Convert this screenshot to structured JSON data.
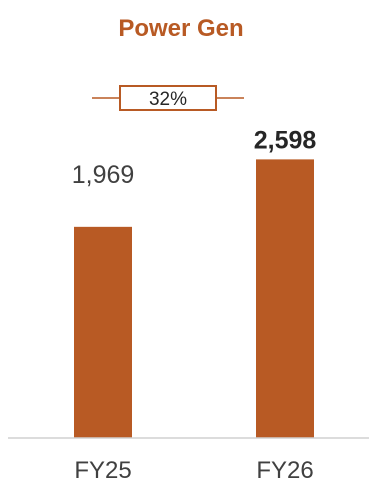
{
  "chart_data": {
    "type": "bar",
    "title": "Power Gen",
    "categories": [
      "FY25",
      "FY26"
    ],
    "values": [
      1969,
      2598
    ],
    "value_labels": [
      "1,969",
      "2,598"
    ],
    "highlight_index": 1,
    "growth_label": "32%",
    "ylim": [
      0,
      2900
    ],
    "grid": false,
    "legend": "none",
    "bar_color": "#B85A24",
    "title_color": "#B85A24"
  }
}
